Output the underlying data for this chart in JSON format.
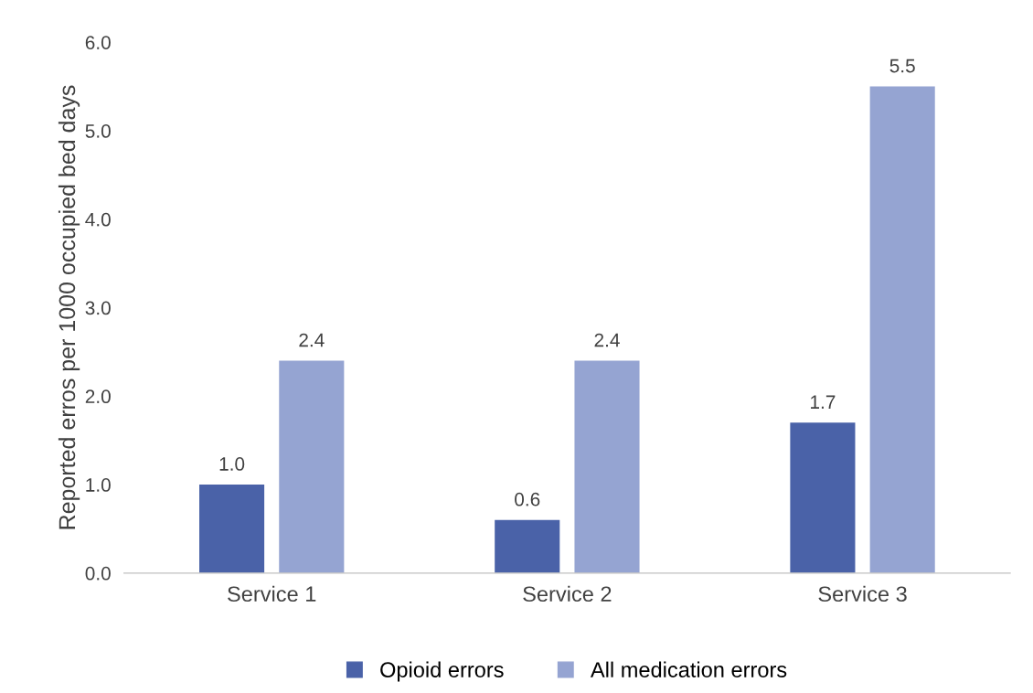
{
  "chart_data": {
    "type": "bar",
    "ylabel": "Reported erros per 1000 occupied bed days",
    "categories": [
      "Service 1",
      "Service 2",
      "Service 3"
    ],
    "series": [
      {
        "name": "Opioid errors",
        "color": "#4a62a8",
        "values": [
          1.0,
          0.6,
          1.7
        ]
      },
      {
        "name": "All medication errors",
        "color": "#95a4d2",
        "values": [
          2.4,
          2.4,
          5.5
        ]
      }
    ],
    "ylim": [
      0,
      6
    ],
    "yticks": [
      {
        "value": 0,
        "label": "0.0"
      },
      {
        "value": 1,
        "label": "1.0"
      },
      {
        "value": 2,
        "label": "2.0"
      },
      {
        "value": 3,
        "label": "3.0"
      },
      {
        "value": 4,
        "label": "4.0"
      },
      {
        "value": 5,
        "label": "5.0"
      },
      {
        "value": 6,
        "label": "6.0"
      }
    ],
    "value_labels": [
      [
        "1.0",
        "0.6",
        "1.7"
      ],
      [
        "2.4",
        "2.4",
        "5.5"
      ]
    ],
    "grid": false,
    "legend": "bottom"
  }
}
